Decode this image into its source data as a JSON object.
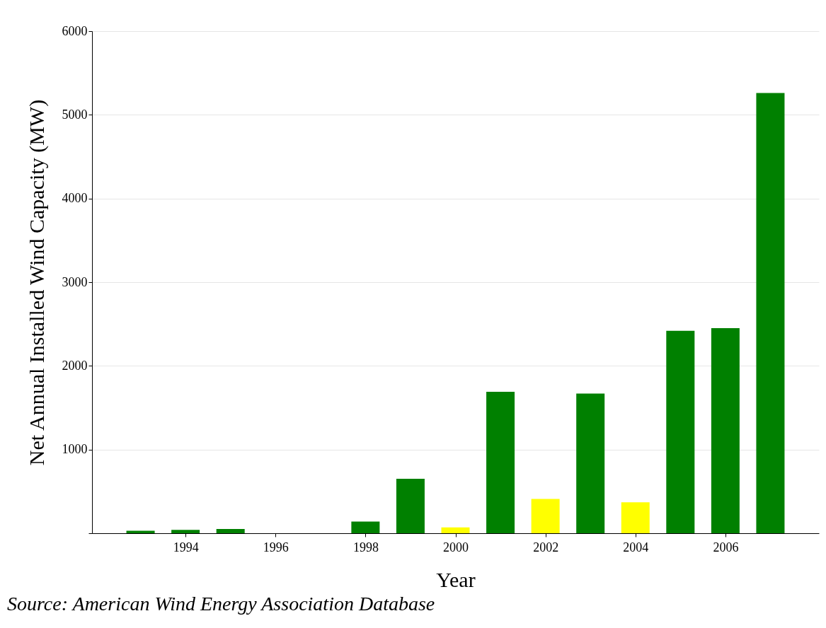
{
  "chart_data": {
    "type": "bar",
    "xlabel": "Year",
    "ylabel": "Net Annual Installed Wind Capacity (MW)",
    "x": [
      1993,
      1994,
      1995,
      1996,
      1997,
      1998,
      1999,
      2000,
      2001,
      2002,
      2003,
      2004,
      2005,
      2006,
      2007
    ],
    "values": [
      30,
      40,
      50,
      0,
      0,
      140,
      650,
      70,
      1690,
      410,
      1670,
      370,
      2420,
      2450,
      5260
    ],
    "colors": [
      "#008000",
      "#008000",
      "#008000",
      "#008000",
      "#008000",
      "#008000",
      "#008000",
      "#ffff00",
      "#008000",
      "#ffff00",
      "#008000",
      "#ffff00",
      "#008000",
      "#008000",
      "#008000"
    ],
    "xlim": [
      1992,
      2008
    ],
    "xticks": [
      1994,
      1996,
      1998,
      2000,
      2002,
      2004,
      2006
    ],
    "ylim": [
      0,
      6000
    ],
    "yticks": [
      {
        "value": 0,
        "label": null
      },
      1000,
      2000,
      3000,
      4000,
      5000,
      6000
    ],
    "grid": "y",
    "annotations": [
      "Source: American Wind Energy Association Database"
    ]
  }
}
